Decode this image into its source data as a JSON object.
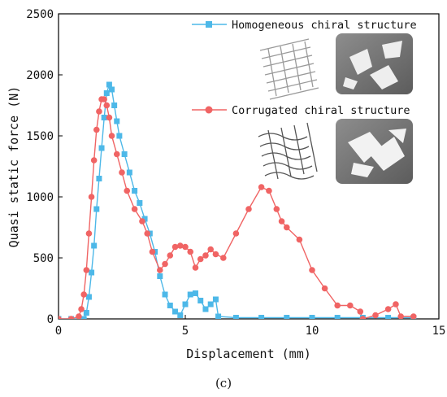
{
  "chart_data": {
    "type": "line",
    "title": "",
    "xlabel": "Displacement (mm)",
    "ylabel": "Quasi static force (N)",
    "xlim": [
      0,
      15
    ],
    "ylim": [
      0,
      2500
    ],
    "xticks": [
      0,
      5,
      10,
      15
    ],
    "yticks": [
      0,
      500,
      1000,
      1500,
      2000,
      2500
    ],
    "grid": false,
    "legend_position": "top-right",
    "caption": "(c)",
    "series": [
      {
        "name": "Homogeneous chiral structure",
        "color": "#4db8e8",
        "marker": "square",
        "x": [
          0,
          0.5,
          1.0,
          1.1,
          1.2,
          1.3,
          1.4,
          1.5,
          1.6,
          1.7,
          1.8,
          1.9,
          2.0,
          2.1,
          2.2,
          2.3,
          2.4,
          2.6,
          2.8,
          3.0,
          3.2,
          3.4,
          3.6,
          3.8,
          4.0,
          4.2,
          4.4,
          4.6,
          4.8,
          5.0,
          5.2,
          5.4,
          5.6,
          5.8,
          6.0,
          6.2,
          6.3,
          7,
          8,
          9,
          10,
          11,
          12,
          13,
          14
        ],
        "y": [
          0,
          0,
          0,
          50,
          180,
          380,
          600,
          900,
          1150,
          1400,
          1650,
          1850,
          1920,
          1880,
          1750,
          1620,
          1500,
          1350,
          1200,
          1050,
          950,
          820,
          700,
          550,
          350,
          200,
          110,
          60,
          30,
          120,
          200,
          210,
          150,
          80,
          120,
          160,
          20,
          10,
          10,
          10,
          10,
          10,
          10,
          10,
          10
        ]
      },
      {
        "name": "Corrugated chiral structure",
        "color": "#f06464",
        "marker": "circle",
        "x": [
          0,
          0.5,
          0.8,
          0.9,
          1.0,
          1.1,
          1.2,
          1.3,
          1.4,
          1.5,
          1.6,
          1.7,
          1.8,
          1.9,
          2.0,
          2.1,
          2.3,
          2.5,
          2.7,
          3.0,
          3.3,
          3.5,
          3.7,
          4.0,
          4.2,
          4.4,
          4.6,
          4.8,
          5.0,
          5.2,
          5.4,
          5.6,
          5.8,
          6.0,
          6.2,
          6.5,
          7.0,
          7.5,
          8.0,
          8.3,
          8.6,
          8.8,
          9.0,
          9.5,
          10.0,
          10.5,
          11.0,
          11.5,
          11.9,
          12.0,
          12.5,
          13.0,
          13.3,
          13.5,
          14.0
        ],
        "y": [
          0,
          0,
          20,
          80,
          200,
          400,
          700,
          1000,
          1300,
          1550,
          1700,
          1800,
          1800,
          1750,
          1650,
          1500,
          1350,
          1200,
          1050,
          900,
          800,
          700,
          550,
          400,
          450,
          520,
          590,
          600,
          590,
          550,
          420,
          490,
          520,
          570,
          530,
          500,
          700,
          900,
          1080,
          1050,
          900,
          800,
          750,
          650,
          400,
          250,
          110,
          110,
          60,
          0,
          30,
          80,
          120,
          20,
          20
        ]
      }
    ]
  },
  "legend": {
    "item1": "Homogeneous chiral structure",
    "item2": "Corrugated chiral structure"
  }
}
